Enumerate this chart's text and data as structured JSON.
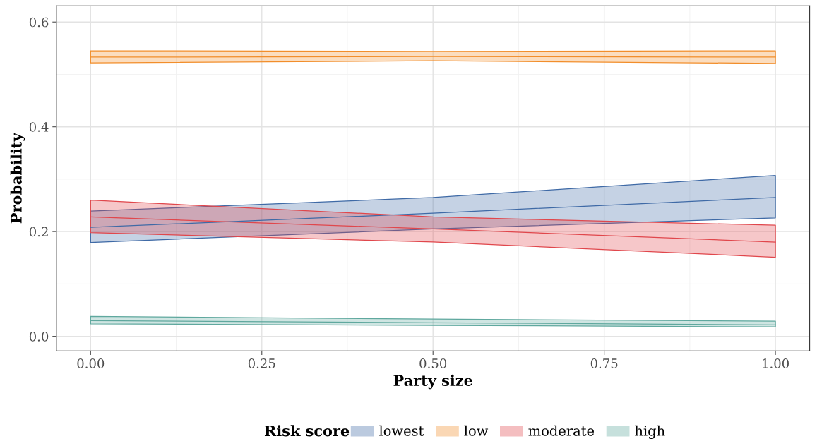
{
  "chart_data": {
    "type": "line",
    "xlabel": "Party size",
    "ylabel": "Probability",
    "legend_title": "Risk score",
    "x": [
      0,
      0.5,
      1
    ],
    "series": [
      {
        "name": "lowest",
        "color": "#3f6aa6",
        "values": [
          0.208,
          0.235,
          0.265
        ],
        "lower": [
          0.179,
          0.205,
          0.226
        ],
        "upper": [
          0.239,
          0.265,
          0.307
        ]
      },
      {
        "name": "low",
        "color": "#f28e2b",
        "values": [
          0.533,
          0.534,
          0.533
        ],
        "lower": [
          0.522,
          0.526,
          0.521
        ],
        "upper": [
          0.545,
          0.544,
          0.545
        ]
      },
      {
        "name": "moderate",
        "color": "#e0474c",
        "values": [
          0.228,
          0.205,
          0.18
        ],
        "lower": [
          0.198,
          0.18,
          0.151
        ],
        "upper": [
          0.26,
          0.228,
          0.212
        ]
      },
      {
        "name": "high",
        "color": "#5fa89e",
        "values": [
          0.03,
          0.026,
          0.022
        ],
        "lower": [
          0.024,
          0.021,
          0.018
        ],
        "upper": [
          0.038,
          0.033,
          0.029
        ]
      }
    ],
    "xlim": [
      -0.05,
      1.05
    ],
    "ylim": [
      -0.028,
      0.631
    ],
    "xticks": [
      {
        "value": 0,
        "label": "0.00"
      },
      {
        "value": 0.25,
        "label": "0.25"
      },
      {
        "value": 0.5,
        "label": "0.50"
      },
      {
        "value": 0.75,
        "label": "0.75"
      },
      {
        "value": 1,
        "label": "1.00"
      }
    ],
    "yticks": [
      {
        "value": 0,
        "label": "0.0"
      },
      {
        "value": 0.2,
        "label": "0.2"
      },
      {
        "value": 0.4,
        "label": "0.4"
      },
      {
        "value": 0.6,
        "label": "0.6"
      }
    ],
    "grid": true,
    "legend": "bottom",
    "marker": "none",
    "line_style": "solid"
  }
}
